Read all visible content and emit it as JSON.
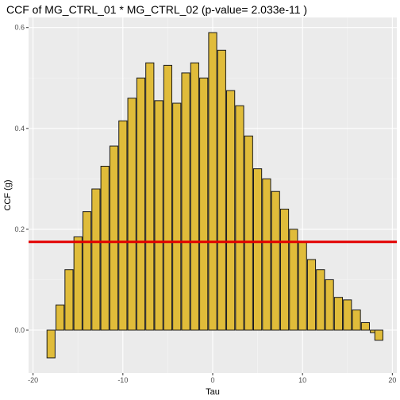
{
  "chart_data": {
    "type": "bar",
    "title": "CCF of MG_CTRL_01 * MG_CTRL_02 (p-value= 2.033e-11 )",
    "xlabel": "Tau",
    "ylabel": "CCF (g)",
    "x": [
      -18,
      -17,
      -16,
      -15,
      -14,
      -13,
      -12,
      -11,
      -10,
      -9,
      -8,
      -7,
      -6,
      -5,
      -4,
      -3,
      -2,
      -1,
      0,
      1,
      2,
      3,
      4,
      5,
      6,
      7,
      8,
      9,
      10,
      11,
      12,
      13,
      14,
      15,
      16,
      17,
      18
    ],
    "values": [
      -0.055,
      0.05,
      0.12,
      0.185,
      0.235,
      0.28,
      0.325,
      0.365,
      0.415,
      0.46,
      0.5,
      0.53,
      0.455,
      0.525,
      0.45,
      0.51,
      0.53,
      0.5,
      0.59,
      0.555,
      0.475,
      0.445,
      0.385,
      0.32,
      0.3,
      0.275,
      0.24,
      0.2,
      0.175,
      0.14,
      0.12,
      0.1,
      0.065,
      0.06,
      0.04,
      0.015,
      -0.005
    ],
    "extra_bar": {
      "x": 18.5,
      "value": -0.02
    },
    "xlim": [
      -20.5,
      20.5
    ],
    "ylim": [
      -0.085,
      0.62
    ],
    "xticks": [
      -20,
      -10,
      0,
      10,
      20
    ],
    "yticks": [
      0.0,
      0.2,
      0.4,
      0.6
    ],
    "xtick_labels": [
      "-20",
      "-10",
      "0",
      "10",
      "20"
    ],
    "ytick_labels": [
      "0.0",
      "0.2",
      "0.4",
      "0.6"
    ],
    "threshold": 0.175,
    "grid": true,
    "colors": {
      "panel": "#ebebeb",
      "grid_major": "#ffffff",
      "bar_fill": "#e0bc3a",
      "bar_stroke": "#1a1a1a",
      "threshold_line": "#e30000"
    }
  }
}
